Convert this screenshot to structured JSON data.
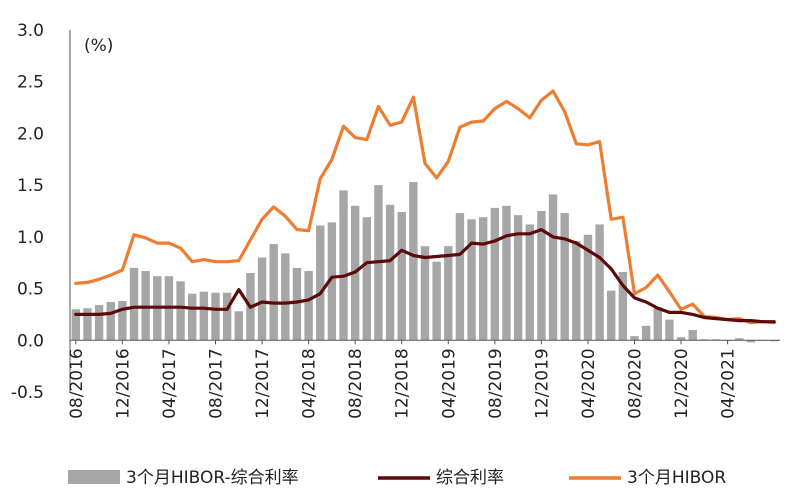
{
  "chart_data": {
    "type": "bar+line",
    "unit": "(%)",
    "ylim": [
      -0.5,
      3.0
    ],
    "yticks": [
      "3.0",
      "2.5",
      "2.0",
      "1.5",
      "1.0",
      "0.5",
      "0.0",
      "-0.5"
    ],
    "ytick_values": [
      3.0,
      2.5,
      2.0,
      1.5,
      1.0,
      0.5,
      0.0,
      -0.5
    ],
    "xtick_labels": [
      "08/2016",
      "12/2016",
      "04/2017",
      "08/2017",
      "12/2017",
      "04/2018",
      "08/2018",
      "12/2018",
      "04/2019",
      "08/2019",
      "12/2019",
      "04/2020",
      "08/2020",
      "12/2020",
      "04/2021"
    ],
    "x_months": [
      "2016-08",
      "2016-09",
      "2016-10",
      "2016-11",
      "2016-12",
      "2017-01",
      "2017-02",
      "2017-03",
      "2017-04",
      "2017-05",
      "2017-06",
      "2017-07",
      "2017-08",
      "2017-09",
      "2017-10",
      "2017-11",
      "2017-12",
      "2018-01",
      "2018-02",
      "2018-03",
      "2018-04",
      "2018-05",
      "2018-06",
      "2018-07",
      "2018-08",
      "2018-09",
      "2018-10",
      "2018-11",
      "2018-12",
      "2019-01",
      "2019-02",
      "2019-03",
      "2019-04",
      "2019-05",
      "2019-06",
      "2019-07",
      "2019-08",
      "2019-09",
      "2019-10",
      "2019-11",
      "2019-12",
      "2020-01",
      "2020-02",
      "2020-03",
      "2020-04",
      "2020-05",
      "2020-06",
      "2020-07",
      "2020-08",
      "2020-09",
      "2020-10",
      "2020-11",
      "2020-12",
      "2021-01",
      "2021-02",
      "2021-03",
      "2021-04",
      "2021-05",
      "2021-06",
      "2021-07",
      "2021-08"
    ],
    "grid": false,
    "legend_position": "bottom",
    "series": [
      {
        "name": "3个月HIBOR-综合利率",
        "type": "bar",
        "color": "#a6a6a6",
        "values": [
          0.3,
          0.31,
          0.34,
          0.37,
          0.38,
          0.7,
          0.67,
          0.62,
          0.62,
          0.57,
          0.45,
          0.47,
          0.46,
          0.46,
          0.28,
          0.65,
          0.8,
          0.93,
          0.84,
          0.7,
          0.67,
          1.11,
          1.14,
          1.45,
          1.3,
          1.19,
          1.5,
          1.31,
          1.24,
          1.53,
          0.91,
          0.76,
          0.91,
          1.23,
          1.17,
          1.19,
          1.28,
          1.3,
          1.21,
          1.12,
          1.25,
          1.41,
          1.23,
          0.96,
          1.02,
          1.12,
          0.48,
          0.66,
          0.04,
          0.14,
          0.32,
          0.2,
          0.03,
          0.1,
          0.01,
          0.01,
          0.0,
          0.02,
          -0.02,
          0.0,
          -0.01
        ]
      },
      {
        "name": "综合利率",
        "type": "line",
        "color": "#5c0a0a",
        "values": [
          0.25,
          0.25,
          0.25,
          0.26,
          0.3,
          0.32,
          0.32,
          0.32,
          0.32,
          0.32,
          0.31,
          0.31,
          0.3,
          0.3,
          0.49,
          0.32,
          0.37,
          0.36,
          0.36,
          0.37,
          0.39,
          0.45,
          0.61,
          0.62,
          0.66,
          0.75,
          0.76,
          0.77,
          0.87,
          0.82,
          0.8,
          0.81,
          0.82,
          0.83,
          0.94,
          0.93,
          0.96,
          1.01,
          1.03,
          1.03,
          1.07,
          1.0,
          0.98,
          0.94,
          0.87,
          0.8,
          0.69,
          0.53,
          0.41,
          0.37,
          0.31,
          0.27,
          0.27,
          0.25,
          0.22,
          0.21,
          0.2,
          0.19,
          0.19,
          0.18,
          0.18
        ]
      },
      {
        "name": "3个月HIBOR",
        "type": "line",
        "color": "#ed7d31",
        "values": [
          0.55,
          0.56,
          0.59,
          0.63,
          0.68,
          1.02,
          0.99,
          0.94,
          0.94,
          0.89,
          0.76,
          0.78,
          0.76,
          0.76,
          0.77,
          0.97,
          1.17,
          1.29,
          1.2,
          1.07,
          1.06,
          1.56,
          1.75,
          2.07,
          1.96,
          1.94,
          2.26,
          2.08,
          2.11,
          2.35,
          1.71,
          1.57,
          1.73,
          2.06,
          2.11,
          2.12,
          2.24,
          2.31,
          2.24,
          2.15,
          2.32,
          2.41,
          2.21,
          1.9,
          1.89,
          1.92,
          1.17,
          1.19,
          0.45,
          0.51,
          0.63,
          0.47,
          0.3,
          0.35,
          0.23,
          0.22,
          0.2,
          0.21,
          0.17,
          0.18,
          0.17
        ]
      }
    ]
  }
}
